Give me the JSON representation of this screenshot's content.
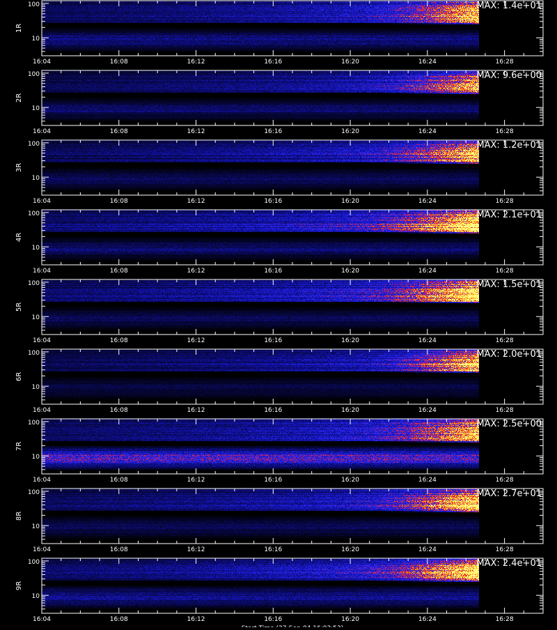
{
  "chart_data": {
    "type": "heatmap",
    "x_tick_labels": [
      "16:04",
      "16:08",
      "16:12",
      "16:16",
      "16:20",
      "16:24",
      "16:28"
    ],
    "y_tick_labels": [
      "100",
      "10"
    ],
    "y_scale": "log",
    "y_range": [
      3,
      120
    ],
    "data_end_time": "16:26:40",
    "colormap": [
      "#000000",
      "#1010a0",
      "#2828ff",
      "#ff2020",
      "#ffa000",
      "#ffff80"
    ],
    "bottom_caption": "Start Time (27-Sep-04 16:03:53)",
    "panels": [
      {
        "ylabel": "1R",
        "max_text": "MAX: 1.4e+01",
        "max_value": 14,
        "upper_band_intensity": 0.55,
        "lower_band_intensity": 0.18,
        "flare_intensity": 0.85
      },
      {
        "ylabel": "2R",
        "max_text": "MAX: 9.6e+00",
        "max_value": 9.6,
        "upper_band_intensity": 0.45,
        "lower_band_intensity": 0.15,
        "flare_intensity": 0.7
      },
      {
        "ylabel": "3R",
        "max_text": "MAX: 1.2e+01",
        "max_value": 12,
        "upper_band_intensity": 0.5,
        "lower_band_intensity": 0.12,
        "flare_intensity": 0.8
      },
      {
        "ylabel": "4R",
        "max_text": "MAX: 2.1e+01",
        "max_value": 21,
        "upper_band_intensity": 0.6,
        "lower_band_intensity": 0.14,
        "flare_intensity": 1.0
      },
      {
        "ylabel": "5R",
        "max_text": "MAX: 1.5e+01",
        "max_value": 15,
        "upper_band_intensity": 0.55,
        "lower_band_intensity": 0.12,
        "flare_intensity": 0.92
      },
      {
        "ylabel": "6R",
        "max_text": "MAX: 2.0e+01",
        "max_value": 20,
        "upper_band_intensity": 0.45,
        "lower_band_intensity": 0.1,
        "flare_intensity": 0.85
      },
      {
        "ylabel": "7R",
        "max_text": "MAX: 2.5e+00",
        "max_value": 2.5,
        "upper_band_intensity": 0.55,
        "lower_band_intensity": 0.45,
        "flare_intensity": 0.7
      },
      {
        "ylabel": "8R",
        "max_text": "MAX: 2.7e+01",
        "max_value": 27,
        "upper_band_intensity": 0.5,
        "lower_band_intensity": 0.12,
        "flare_intensity": 0.9
      },
      {
        "ylabel": "9R",
        "max_text": "MAX: 2.4e+01",
        "max_value": 24,
        "upper_band_intensity": 0.55,
        "lower_band_intensity": 0.2,
        "flare_intensity": 0.88
      }
    ]
  }
}
